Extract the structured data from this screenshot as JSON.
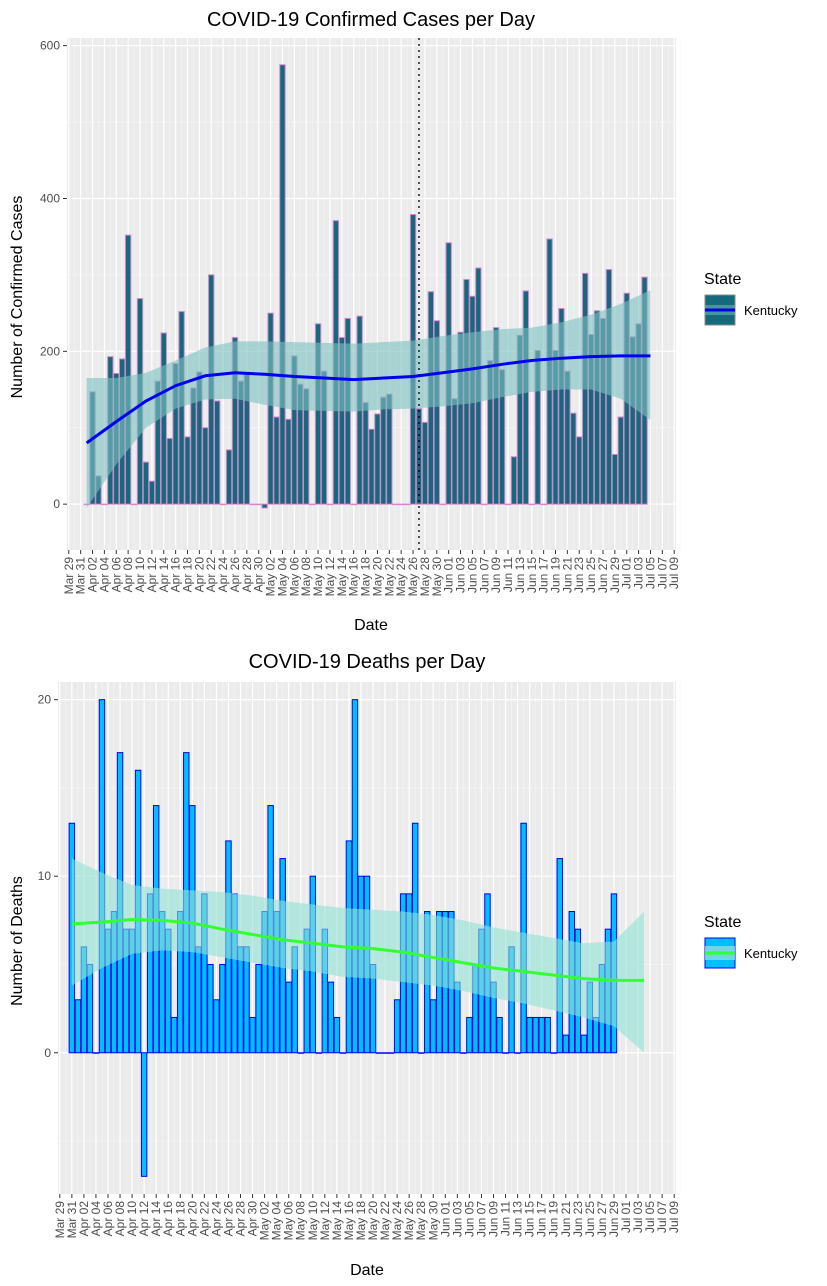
{
  "chart_data": [
    {
      "type": "bar",
      "title": "COVID-19 Confirmed Cases per Day",
      "xlabel": "Date",
      "ylabel": "Number of Confirmed Cases",
      "ylim": [
        -60,
        610
      ],
      "xlim": [
        "2020-03-29",
        "2020-07-09"
      ],
      "yticks": [
        0,
        200,
        400,
        600
      ],
      "x_tick_labels": [
        "Mar 29",
        "Mar 31",
        "Apr 02",
        "Apr 04",
        "Apr 06",
        "Apr 08",
        "Apr 10",
        "Apr 12",
        "Apr 14",
        "Apr 16",
        "Apr 18",
        "Apr 20",
        "Apr 22",
        "Apr 24",
        "Apr 26",
        "Apr 28",
        "Apr 30",
        "May 02",
        "May 04",
        "May 06",
        "May 08",
        "May 10",
        "May 12",
        "May 14",
        "May 16",
        "May 18",
        "May 20",
        "May 22",
        "May 24",
        "May 26",
        "May 28",
        "May 30",
        "Jun 01",
        "Jun 03",
        "Jun 05",
        "Jun 07",
        "Jun 09",
        "Jun 11",
        "Jun 13",
        "Jun 15",
        "Jun 17",
        "Jun 19",
        "Jun 21",
        "Jun 23",
        "Jun 25",
        "Jun 27",
        "Jun 29",
        "Jul 01",
        "Jul 03",
        "Jul 05",
        "Jul 07",
        "Jul 09"
      ],
      "start_date": "2020-04-01",
      "values": [
        0,
        147,
        37,
        0,
        193,
        171,
        190,
        352,
        0,
        269,
        55,
        30,
        161,
        224,
        86,
        184,
        252,
        88,
        152,
        173,
        100,
        300,
        135,
        0,
        71,
        218,
        161,
        172,
        0,
        0,
        -5,
        250,
        114,
        575,
        111,
        194,
        157,
        151,
        0,
        236,
        174,
        0,
        371,
        218,
        243,
        0,
        246,
        133,
        98,
        118,
        140,
        144,
        0,
        0,
        0,
        379,
        125,
        107,
        278,
        240,
        0,
        342,
        138,
        225,
        294,
        272,
        309,
        0,
        188,
        231,
        176,
        0,
        62,
        221,
        279,
        0,
        201,
        0,
        347,
        201,
        256,
        174,
        119,
        88,
        302,
        222,
        253,
        243,
        307,
        65,
        114,
        276,
        219,
        236,
        297
      ],
      "smooth": [
        [
          0,
          80
        ],
        [
          5,
          108
        ],
        [
          10,
          135
        ],
        [
          15,
          155
        ],
        [
          20,
          168
        ],
        [
          25,
          172
        ],
        [
          30,
          170
        ],
        [
          35,
          167
        ],
        [
          40,
          165
        ],
        [
          45,
          163
        ],
        [
          50,
          165
        ],
        [
          55,
          167
        ],
        [
          60,
          172
        ],
        [
          65,
          177
        ],
        [
          70,
          183
        ],
        [
          75,
          188
        ],
        [
          80,
          191
        ],
        [
          85,
          193
        ],
        [
          90,
          194
        ],
        [
          95,
          194
        ]
      ],
      "band_upper": [
        165,
        165,
        172,
        188,
        205,
        213,
        213,
        212,
        211,
        210,
        212,
        214,
        220,
        225,
        229,
        231,
        238,
        248,
        262,
        280
      ],
      "band_lower": [
        -5,
        52,
        100,
        125,
        137,
        138,
        130,
        123,
        122,
        121,
        124,
        125,
        128,
        132,
        140,
        147,
        150,
        150,
        138,
        110
      ],
      "vline": "2020-05-27",
      "legend": {
        "title": "State",
        "label": "Kentucky"
      },
      "colors": {
        "bar_fill": "#136a7a",
        "bar_stroke": "#d883d0",
        "line": "#0000ee",
        "band": "#7cc2c0"
      }
    },
    {
      "type": "bar",
      "title": "COVID-19 Deaths per Day",
      "xlabel": "Date",
      "ylabel": "Number of Deaths",
      "ylim": [
        -8,
        21
      ],
      "xlim": [
        "2020-03-29",
        "2020-07-09"
      ],
      "yticks": [
        0,
        10,
        20
      ],
      "x_tick_labels": [
        "Mar 29",
        "Mar 31",
        "Apr 02",
        "Apr 04",
        "Apr 06",
        "Apr 08",
        "Apr 10",
        "Apr 12",
        "Apr 14",
        "Apr 16",
        "Apr 18",
        "Apr 20",
        "Apr 22",
        "Apr 24",
        "Apr 26",
        "Apr 28",
        "Apr 30",
        "May 02",
        "May 04",
        "May 06",
        "May 08",
        "May 10",
        "May 12",
        "May 14",
        "May 16",
        "May 18",
        "May 20",
        "May 22",
        "May 24",
        "May 26",
        "May 28",
        "May 30",
        "Jun 01",
        "Jun 03",
        "Jun 05",
        "Jun 07",
        "Jun 09",
        "Jun 11",
        "Jun 13",
        "Jun 15",
        "Jun 17",
        "Jun 19",
        "Jun 21",
        "Jun 23",
        "Jun 25",
        "Jun 27",
        "Jun 29",
        "Jul 01",
        "Jul 03",
        "Jul 05",
        "Jul 07",
        "Jul 09"
      ],
      "start_date": "2020-03-31",
      "values": [
        13,
        3,
        6,
        5,
        0,
        20,
        7,
        8,
        17,
        7,
        7,
        16,
        -7,
        9,
        14,
        8,
        7,
        2,
        8,
        17,
        14,
        6,
        9,
        5,
        3,
        5,
        12,
        9,
        6,
        6,
        2,
        5,
        8,
        14,
        8,
        11,
        4,
        6,
        0,
        7,
        10,
        0,
        7,
        4,
        2,
        0,
        12,
        20,
        10,
        10,
        5,
        0,
        0,
        0,
        3,
        9,
        9,
        13,
        0,
        8,
        3,
        8,
        8,
        8,
        4,
        0,
        2,
        5,
        7,
        9,
        4,
        2,
        0,
        6,
        0,
        13,
        2,
        2,
        2,
        2,
        0,
        11,
        1,
        8,
        7,
        1,
        4,
        2,
        5,
        7,
        9
      ],
      "smooth": [
        [
          0,
          7.3
        ],
        [
          5,
          7.4
        ],
        [
          10,
          7.55
        ],
        [
          15,
          7.5
        ],
        [
          20,
          7.35
        ],
        [
          25,
          7.0
        ],
        [
          30,
          6.7
        ],
        [
          35,
          6.4
        ],
        [
          40,
          6.2
        ],
        [
          45,
          6.0
        ],
        [
          50,
          5.9
        ],
        [
          55,
          5.7
        ],
        [
          60,
          5.4
        ],
        [
          65,
          5.1
        ],
        [
          70,
          4.8
        ],
        [
          75,
          4.6
        ],
        [
          80,
          4.4
        ],
        [
          85,
          4.2
        ],
        [
          90,
          4.1
        ],
        [
          95,
          4.1
        ]
      ],
      "band_upper": [
        11,
        10.2,
        9.5,
        9.3,
        9.2,
        9.1,
        8.9,
        8.6,
        8.4,
        8.2,
        8.1,
        8.0,
        7.8,
        7.5,
        7.1,
        6.8,
        6.5,
        6.2,
        6.3,
        8.0
      ],
      "band_lower": [
        3.8,
        4.8,
        5.6,
        5.8,
        5.7,
        5.4,
        5.1,
        4.8,
        4.6,
        4.3,
        4.2,
        4.0,
        3.8,
        3.5,
        3.1,
        2.8,
        2.4,
        2.0,
        1.5,
        0.0
      ],
      "legend": {
        "title": "State",
        "label": "Kentucky"
      },
      "colors": {
        "bar_fill": "#00bfff",
        "bar_stroke": "#0000ee",
        "line": "#33ff33",
        "band": "#8fe3d6"
      }
    }
  ]
}
